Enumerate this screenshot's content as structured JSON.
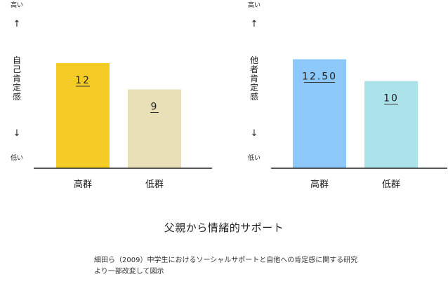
{
  "chart_data": [
    {
      "type": "bar",
      "y_axis_label": "自己肯定感",
      "y_top_label": "高い",
      "y_bottom_label": "低い",
      "up_arrow": "↑",
      "down_arrow": "↓",
      "categories": [
        "高群",
        "低群"
      ],
      "values": [
        12,
        9
      ],
      "value_labels": [
        "12",
        "9"
      ],
      "colors": [
        "#F5CB26",
        "#E8DFB6"
      ],
      "ylim": [
        0,
        15
      ]
    },
    {
      "type": "bar",
      "y_axis_label": "他者肯定感",
      "y_top_label": "高い",
      "y_bottom_label": "低い",
      "up_arrow": "↑",
      "down_arrow": "↓",
      "categories": [
        "高群",
        "低群"
      ],
      "values": [
        12.5,
        10
      ],
      "value_labels": [
        "12.50",
        "10"
      ],
      "colors": [
        "#8CC8FA",
        "#ACE2EA"
      ],
      "ylim": [
        0,
        15
      ]
    }
  ],
  "caption": "父親から情緒的サポート",
  "source_line1": "細田ら（2009）中学生におけるソーシャルサポートと自他への肯定感に関する研究",
  "source_line2": "より一部改変して図示"
}
